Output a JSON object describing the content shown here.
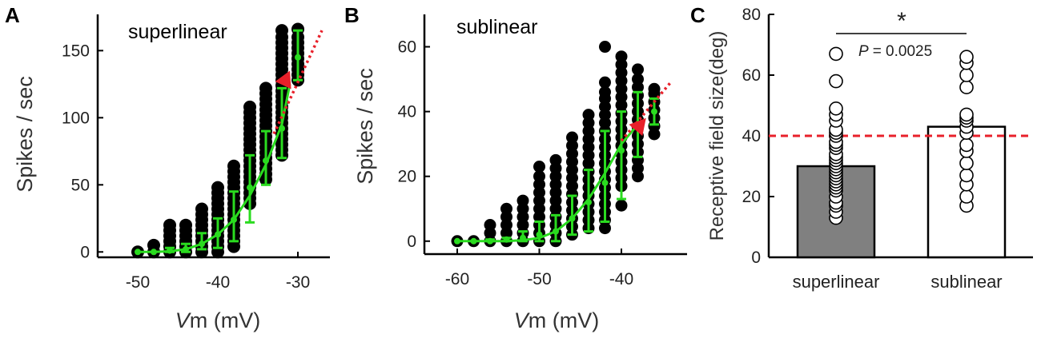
{
  "chart_data": [
    {
      "type": "scatter",
      "panel": "A",
      "title": "superlinear",
      "xlabel_italic": "V",
      "xlabel_rest": "m (mV)",
      "ylabel": "Spikes / sec",
      "xlim": [
        -55,
        -26
      ],
      "ylim": [
        -4,
        177
      ],
      "xticks": [
        -50,
        -40,
        -30
      ],
      "yticks": [
        0,
        50,
        100,
        150
      ],
      "scatter_columns": [
        {
          "x": -50,
          "y": [
            0
          ]
        },
        {
          "x": -48,
          "y": [
            0,
            5
          ]
        },
        {
          "x": -46,
          "y": [
            0,
            4,
            8,
            12,
            16,
            20
          ]
        },
        {
          "x": -44,
          "y": [
            0,
            4,
            8,
            12,
            16,
            20
          ]
        },
        {
          "x": -42,
          "y": [
            0,
            4,
            8,
            12,
            16,
            20,
            24,
            28,
            32
          ]
        },
        {
          "x": -40,
          "y": [
            0,
            4,
            8,
            12,
            16,
            20,
            24,
            28,
            32,
            36,
            40,
            44,
            48
          ]
        },
        {
          "x": -38,
          "y": [
            4,
            8,
            12,
            16,
            20,
            24,
            28,
            32,
            36,
            40,
            44,
            48,
            52,
            56,
            60,
            64
          ]
        },
        {
          "x": -36,
          "y": [
            36,
            40,
            44,
            48,
            52,
            56,
            60,
            64,
            68,
            72,
            76,
            80,
            84,
            88,
            92,
            96,
            100,
            104,
            108
          ]
        },
        {
          "x": -34,
          "y": [
            54,
            58,
            62,
            66,
            70,
            74,
            78,
            82,
            86,
            90,
            94,
            98,
            102,
            106,
            110,
            114,
            118,
            122
          ]
        },
        {
          "x": -32,
          "y": [
            72,
            76,
            80,
            84,
            88,
            92,
            96,
            100,
            104,
            108,
            112,
            116,
            120,
            124,
            128,
            132,
            136,
            140,
            144,
            148,
            152,
            156,
            160,
            165
          ]
        },
        {
          "x": -30,
          "y": [
            128,
            132,
            136,
            140,
            144,
            148,
            152,
            156,
            160,
            166
          ]
        }
      ],
      "errorbars": [
        {
          "x": -50,
          "mean": 0,
          "lo": 0,
          "hi": 0
        },
        {
          "x": -48,
          "mean": 0,
          "lo": 0,
          "hi": 0
        },
        {
          "x": -46,
          "mean": 1,
          "lo": 0,
          "hi": 3
        },
        {
          "x": -44,
          "mean": 2,
          "lo": 0,
          "hi": 6
        },
        {
          "x": -42,
          "mean": 6,
          "lo": 2,
          "hi": 14
        },
        {
          "x": -40,
          "mean": 13,
          "lo": 3,
          "hi": 25
        },
        {
          "x": -38,
          "mean": 24,
          "lo": 8,
          "hi": 45
        },
        {
          "x": -36,
          "mean": 48,
          "lo": 22,
          "hi": 72
        },
        {
          "x": -34,
          "mean": 68,
          "lo": 50,
          "hi": 90
        },
        {
          "x": -32,
          "mean": 92,
          "lo": 70,
          "hi": 122
        },
        {
          "x": -30,
          "mean": 145,
          "lo": 128,
          "hi": 165
        }
      ],
      "fit_curve": {
        "x": [
          -50,
          -48,
          -46,
          -44,
          -42,
          -40,
          -38,
          -36,
          -34,
          -32,
          -31
        ],
        "y": [
          0,
          0,
          0.5,
          2,
          6,
          13,
          24,
          42,
          65,
          95,
          125
        ]
      },
      "extrapolation": {
        "x": [
          -33,
          -27
        ],
        "y": [
          88,
          165
        ]
      },
      "arrow_tip": {
        "x": -31,
        "y": 135
      }
    },
    {
      "type": "scatter",
      "panel": "B",
      "title": "sublinear",
      "xlabel_italic": "V",
      "xlabel_rest": "m (mV)",
      "ylabel": "Spikes / sec",
      "xlim": [
        -64,
        -32
      ],
      "ylim": [
        -4,
        70
      ],
      "xticks": [
        -60,
        -50,
        -40
      ],
      "yticks": [
        0,
        20,
        40,
        60
      ],
      "scatter_columns": [
        {
          "x": -60,
          "y": [
            0
          ]
        },
        {
          "x": -58,
          "y": [
            0
          ]
        },
        {
          "x": -56,
          "y": [
            0,
            2.5,
            5
          ]
        },
        {
          "x": -54,
          "y": [
            0,
            2.5,
            5,
            7.5,
            10
          ]
        },
        {
          "x": -52,
          "y": [
            0,
            2.5,
            5,
            7.5,
            10,
            12.5
          ]
        },
        {
          "x": -50,
          "y": [
            0,
            2.5,
            5,
            7.5,
            10,
            12.5,
            15,
            17.5,
            20,
            23
          ]
        },
        {
          "x": -48,
          "y": [
            0,
            2.5,
            5,
            7.5,
            10,
            12.5,
            15,
            17.5,
            20,
            22.5,
            25
          ]
        },
        {
          "x": -46,
          "y": [
            2,
            4.5,
            7,
            9.5,
            12,
            14.5,
            17,
            19.5,
            22,
            24.5,
            27,
            29.5,
            32
          ]
        },
        {
          "x": -44,
          "y": [
            4,
            6.5,
            9,
            11.5,
            14,
            16.5,
            19,
            21.5,
            24,
            26.5,
            29,
            31.5,
            34,
            36.5,
            39
          ]
        },
        {
          "x": -42,
          "y": [
            4,
            6.5,
            9,
            11.5,
            14,
            16.5,
            19,
            21.5,
            24,
            26.5,
            29,
            31.5,
            34,
            36.5,
            39,
            41.5,
            44,
            46,
            49,
            60
          ]
        },
        {
          "x": -40,
          "y": [
            11,
            17,
            19.5,
            22,
            24.5,
            27,
            29.5,
            32,
            34.5,
            37,
            39.5,
            42,
            44.5,
            47,
            49.5,
            52,
            54.5,
            57
          ]
        },
        {
          "x": -38,
          "y": [
            20,
            22.5,
            25,
            27.5,
            30,
            32.5,
            35,
            37.5,
            40,
            42.5,
            45,
            47.5,
            50,
            53
          ]
        },
        {
          "x": -36,
          "y": [
            33,
            35.5,
            38,
            40.5,
            43,
            45.5,
            47
          ]
        }
      ],
      "errorbars": [
        {
          "x": -60,
          "mean": 0,
          "lo": 0,
          "hi": 0
        },
        {
          "x": -58,
          "mean": 0,
          "lo": 0,
          "hi": 0
        },
        {
          "x": -56,
          "mean": 0,
          "lo": 0,
          "hi": 0.5
        },
        {
          "x": -54,
          "mean": 0.5,
          "lo": 0,
          "hi": 1
        },
        {
          "x": -52,
          "mean": 1,
          "lo": 0,
          "hi": 3
        },
        {
          "x": -50,
          "mean": 2,
          "lo": 0,
          "hi": 6
        },
        {
          "x": -48,
          "mean": 3,
          "lo": 0,
          "hi": 8
        },
        {
          "x": -46,
          "mean": 7,
          "lo": 2,
          "hi": 14
        },
        {
          "x": -44,
          "mean": 12,
          "lo": 3,
          "hi": 22
        },
        {
          "x": -42,
          "mean": 18,
          "lo": 6,
          "hi": 34
        },
        {
          "x": -40,
          "mean": 28,
          "lo": 13,
          "hi": 40
        },
        {
          "x": -38,
          "mean": 36,
          "lo": 26,
          "hi": 46
        },
        {
          "x": -36,
          "mean": 40,
          "lo": 36,
          "hi": 44
        }
      ],
      "fit_curve": {
        "x": [
          -60,
          -58,
          -56,
          -54,
          -52,
          -50,
          -48,
          -46,
          -44,
          -42,
          -40,
          -38
        ],
        "y": [
          0,
          0,
          0,
          0,
          0.3,
          1,
          3,
          7,
          13,
          21,
          30,
          36
        ]
      },
      "extrapolation": {
        "x": [
          -40,
          -34
        ],
        "y": [
          31,
          49
        ]
      },
      "arrow_tip": {
        "x": -37,
        "y": 38
      }
    },
    {
      "type": "bar",
      "panel": "C",
      "categories": [
        "superlinear",
        "sublinear"
      ],
      "values": [
        30,
        43
      ],
      "colors": [
        "#808080",
        "#ffffff"
      ],
      "ylabel": "Receptive field size(deg)",
      "ylim": [
        0,
        80
      ],
      "yticks": [
        0,
        20,
        40,
        60,
        80
      ],
      "reference_line": 40,
      "significance": "*",
      "p_label": "P",
      "p_value": "= 0.0025",
      "points": [
        [
          13,
          15,
          17,
          18,
          20,
          22,
          23,
          24,
          25,
          26,
          27,
          28,
          29,
          30,
          31,
          32,
          33,
          34,
          36,
          37,
          38,
          40,
          41,
          42,
          45,
          47,
          49,
          58,
          67
        ],
        [
          17,
          20,
          24,
          27,
          31,
          35,
          37,
          41,
          43,
          45,
          46,
          47,
          56,
          60,
          64,
          66
        ]
      ]
    }
  ],
  "colors": {
    "dots": "#000000",
    "fit": "#2adb1f",
    "error": "#2adb1f",
    "dashed": "#e8202a",
    "arrow": "#e8202a",
    "bar_super": "#808080",
    "bar_sub": "#ffffff"
  }
}
